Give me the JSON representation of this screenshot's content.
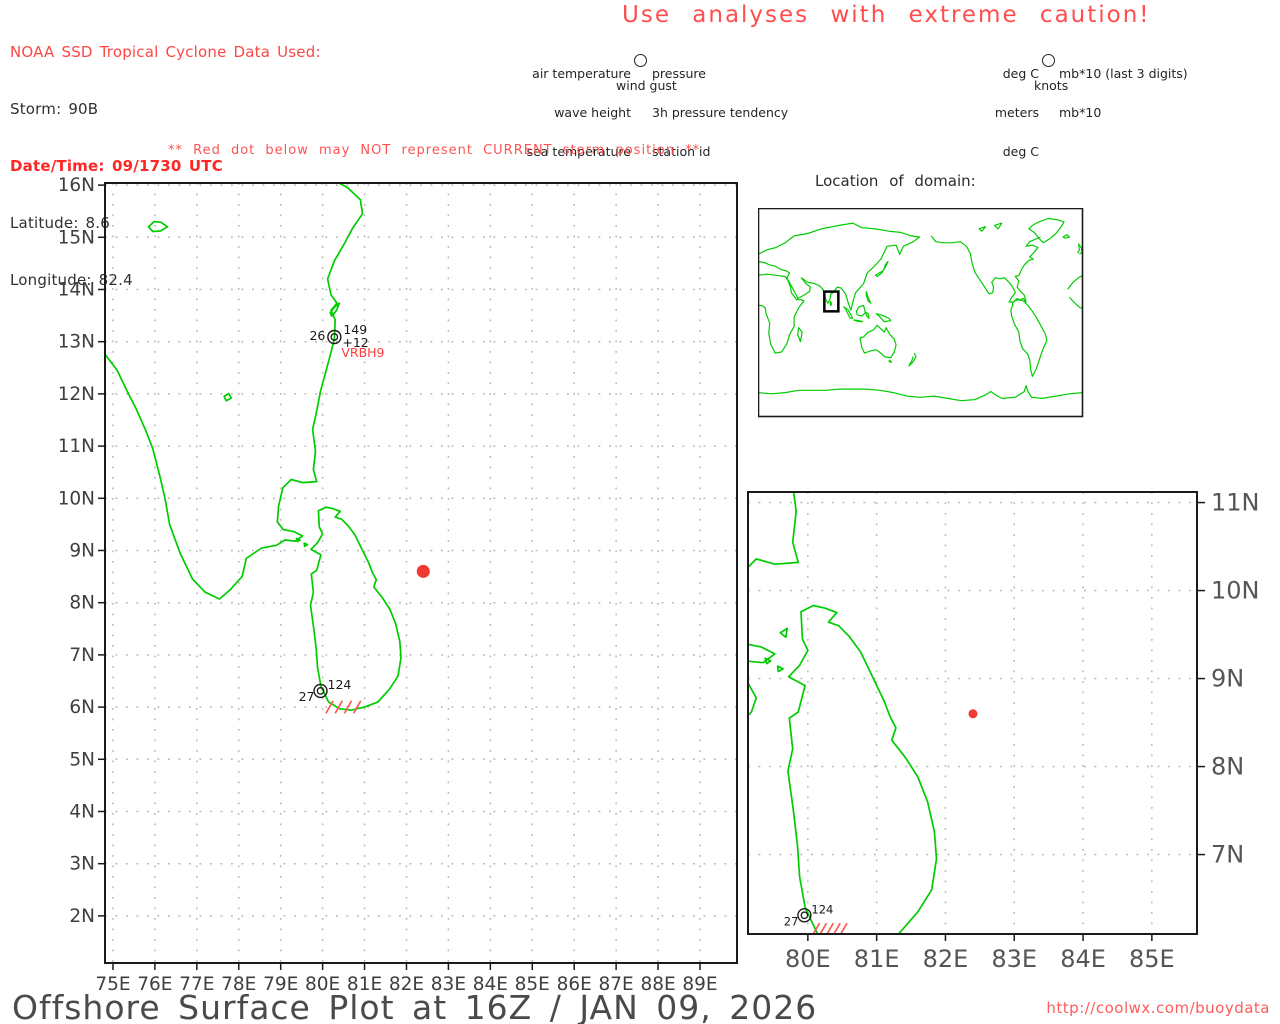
{
  "colors": {
    "red_text": "#ff4646",
    "red_bold": "#ff2626",
    "caution_red": "#ff4d4d",
    "warning_red": "#ff5252",
    "station_id_red": "#ff3b3b",
    "url_red": "#ff5b5b",
    "green_coast": "#00cd00",
    "storm_dot": "#ef3b33",
    "hatch_red": "#ff5a52",
    "frame": "#1a1a1a",
    "grid_dot": "#b5b5b5",
    "axis_label": "#3f3f3f",
    "zoom_axis_label": "#555555",
    "title_gray": "#4a4a4a",
    "station_text": "#1a1a1a"
  },
  "header": {
    "line1": "NOAA SSD Tropical Cyclone Data Used:",
    "storm": "Storm: 90B",
    "datetime": "Date/Time: 09/1730 UTC",
    "latitude": "Latitude: 8.6",
    "longitude": "Longitude: 82.4"
  },
  "caution": "Use analyses with extreme caution!",
  "station_model_legend": {
    "left": [
      "air temperature",
      "wave height",
      "sea temperature"
    ],
    "right": [
      "pressure",
      "3h pressure tendency",
      "station id"
    ],
    "bottom": "wind gust",
    "circle_icon": "station-circle"
  },
  "units_legend": {
    "left": [
      "deg C",
      "meters",
      "deg C"
    ],
    "right": [
      "mb*10 (last 3 digits)",
      "mb*10"
    ],
    "bottom": "knots",
    "circle_icon": "station-circle"
  },
  "warning": "** Red dot below may NOT represent CURRENT storm position **",
  "inset": {
    "title": "Location of domain:"
  },
  "main_map": {
    "lat_labels": [
      "16N",
      "15N",
      "14N",
      "13N",
      "12N",
      "11N",
      "10N",
      "9N",
      "8N",
      "7N",
      "6N",
      "5N",
      "4N",
      "3N",
      "2N"
    ],
    "lon_labels": [
      "75E",
      "76E",
      "77E",
      "78E",
      "79E",
      "80E",
      "81E",
      "82E",
      "83E",
      "84E",
      "85E",
      "86E",
      "87E",
      "88E",
      "89E"
    ],
    "stations": [
      {
        "air_temp": "26",
        "pressure": "149",
        "tendency": "+12",
        "station_id": "VRBH9",
        "lat": 13.09,
        "lon": 80.28
      },
      {
        "air_temp": "27",
        "pressure": "124",
        "lat": 6.31,
        "lon": 79.95
      }
    ],
    "storm_dot": {
      "lat": 8.6,
      "lon": 82.4
    }
  },
  "zoom_map": {
    "lat_labels": [
      "11N",
      "10N",
      "9N",
      "8N",
      "7N"
    ],
    "lon_labels": [
      "80E",
      "81E",
      "82E",
      "83E",
      "84E",
      "85E"
    ],
    "stations": [
      {
        "air_temp": "27",
        "pressure": "124",
        "lat": 6.31,
        "lon": 79.95
      }
    ],
    "storm_dot": {
      "lat": 8.6,
      "lon": 82.4
    }
  },
  "footer": {
    "title": "Offshore Surface Plot at 16Z / JAN 09, 2026",
    "url": "http://coolwx.com/buoydata"
  }
}
